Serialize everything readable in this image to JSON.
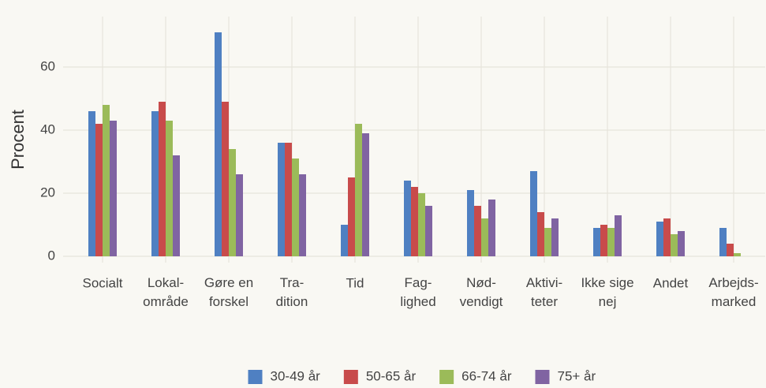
{
  "chart_data": {
    "type": "bar",
    "y_label": "Procent",
    "categories": [
      "Socialt",
      "Lokal-\nområde",
      "Gøre en\nforskel",
      "Tra-\ndition",
      "Tid",
      "Fag-\nlighed",
      "Nød-\nvendigt",
      "Aktivi-\nteter",
      "Ikke sige\nnej",
      "Andet",
      "Arbejds-\nmarked"
    ],
    "series": [
      {
        "name": "30-49 år",
        "color": "#4f80c2",
        "values": [
          46,
          46,
          71,
          36,
          10,
          24,
          21,
          27,
          9,
          11,
          9
        ]
      },
      {
        "name": "50-65 år",
        "color": "#c84b4b",
        "values": [
          42,
          49,
          49,
          36,
          25,
          22,
          16,
          14,
          10,
          12,
          4
        ]
      },
      {
        "name": "66-74 år",
        "color": "#9bbb59",
        "values": [
          48,
          43,
          34,
          31,
          42,
          20,
          12,
          9,
          9,
          7,
          1
        ]
      },
      {
        "name": "75+ år",
        "color": "#8064a2",
        "values": [
          43,
          32,
          26,
          26,
          39,
          16,
          18,
          12,
          13,
          8,
          0
        ]
      }
    ],
    "ylim": [
      -2,
      76
    ],
    "yticks": [
      0,
      20,
      40,
      60
    ],
    "grid": true,
    "legend": "bottom"
  }
}
